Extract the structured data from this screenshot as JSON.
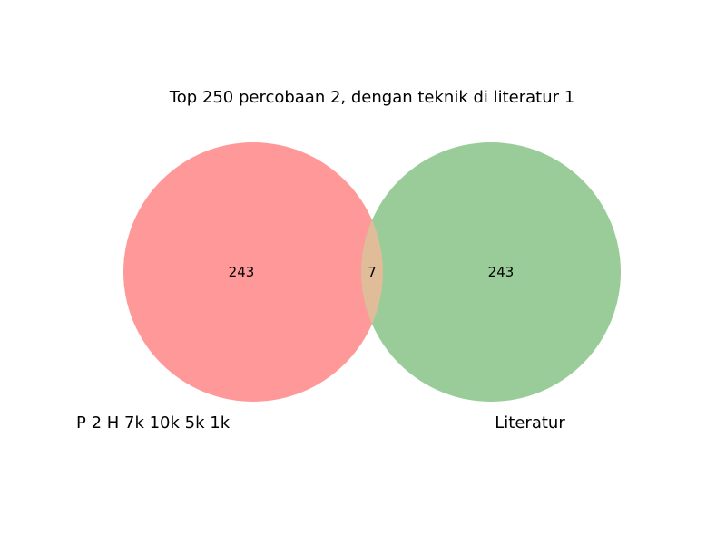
{
  "diagram": {
    "type": "venn2",
    "title": "Top 250 percobaan 2, dengan teknik di literatur 1",
    "sets": [
      {
        "label": "P 2 H 7k 10k 5k 1k",
        "color": "#ff9999",
        "only_count": "243"
      },
      {
        "label": "Literatur",
        "color": "#99cc99",
        "only_count": "243"
      }
    ],
    "intersection": {
      "count": "7",
      "color": "#e0bc99"
    }
  }
}
